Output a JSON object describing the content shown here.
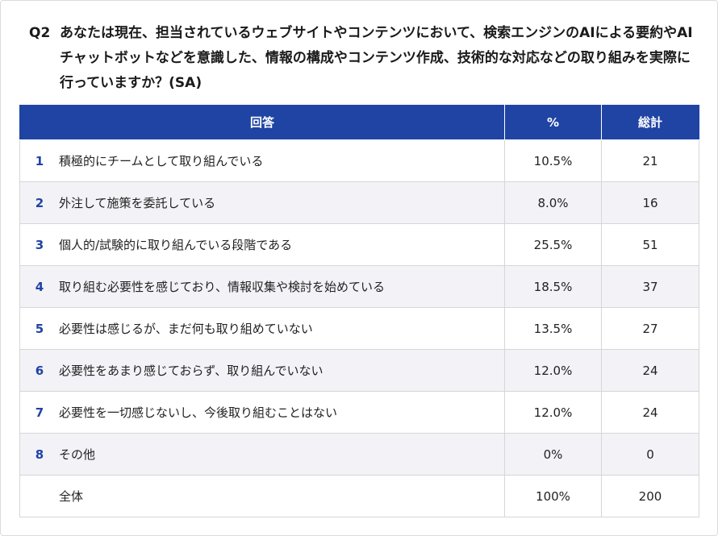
{
  "question": {
    "number": "Q2",
    "text": "あなたは現在、担当されているウェブサイトやコンテンツにおいて、検索エンジンのAIによる要約やAIチャットボットなどを意識した、情報の構成やコンテンツ作成、技術的な対応などの取り組みを実際に行っていますか？(SA)"
  },
  "table": {
    "headers": [
      "回答",
      "%",
      "総計"
    ],
    "rows": [
      {
        "index": "1",
        "label": "積極的にチームとして取り組んでいる",
        "percent": "10.5%",
        "total": "21"
      },
      {
        "index": "2",
        "label": "外注して施策を委託している",
        "percent": "8.0%",
        "total": "16"
      },
      {
        "index": "3",
        "label": "個人的/試験的に取り組んでいる段階である",
        "percent": "25.5%",
        "total": "51"
      },
      {
        "index": "4",
        "label": "取り組む必要性を感じており、情報収集や検討を始めている",
        "percent": "18.5%",
        "total": "37"
      },
      {
        "index": "5",
        "label": "必要性は感じるが、まだ何も取り組めていない",
        "percent": "13.5%",
        "total": "27"
      },
      {
        "index": "6",
        "label": "必要性をあまり感じておらず、取り組んでいない",
        "percent": "12.0%",
        "total": "24"
      },
      {
        "index": "7",
        "label": "必要性を一切感じないし、今後取り組むことはない",
        "percent": "12.0%",
        "total": "24"
      },
      {
        "index": "8",
        "label": "その他",
        "percent": "0%",
        "total": "0"
      },
      {
        "index": "",
        "label": "全体",
        "percent": "100%",
        "total": "200"
      }
    ]
  },
  "colors": {
    "header_bg": "#2044a4",
    "index_text": "#2044a4",
    "stripe": "#f2f2f7"
  }
}
